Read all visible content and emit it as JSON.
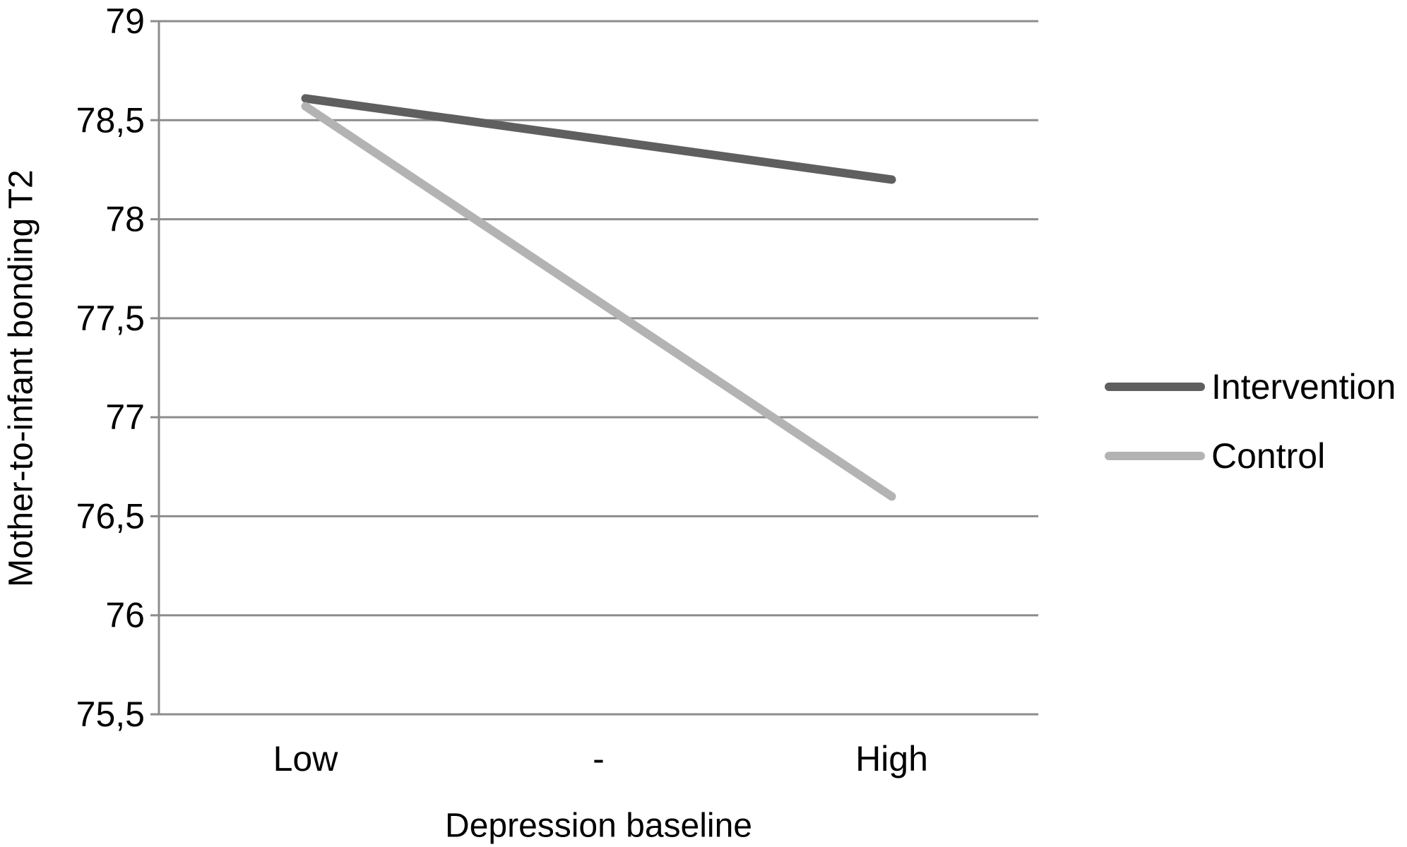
{
  "chart_data": {
    "type": "line",
    "categories": [
      "Low",
      "-",
      "High"
    ],
    "series": [
      {
        "name": "Intervention",
        "color": "#5f5f5f",
        "values": [
          78.61,
          null,
          78.2
        ]
      },
      {
        "name": "Control",
        "color": "#b3b3b3",
        "values": [
          78.57,
          null,
          76.6
        ]
      }
    ],
    "xlabel": "Depression baseline",
    "ylabel": "Mother-to-infant bonding T2",
    "ylim": [
      75.5,
      79
    ],
    "yticks": [
      "75,5",
      "76",
      "76,5",
      "77",
      "77,5",
      "78",
      "78,5",
      "79"
    ],
    "grid": true,
    "legend_position": "right",
    "grid_color": "#8c8c8c"
  }
}
